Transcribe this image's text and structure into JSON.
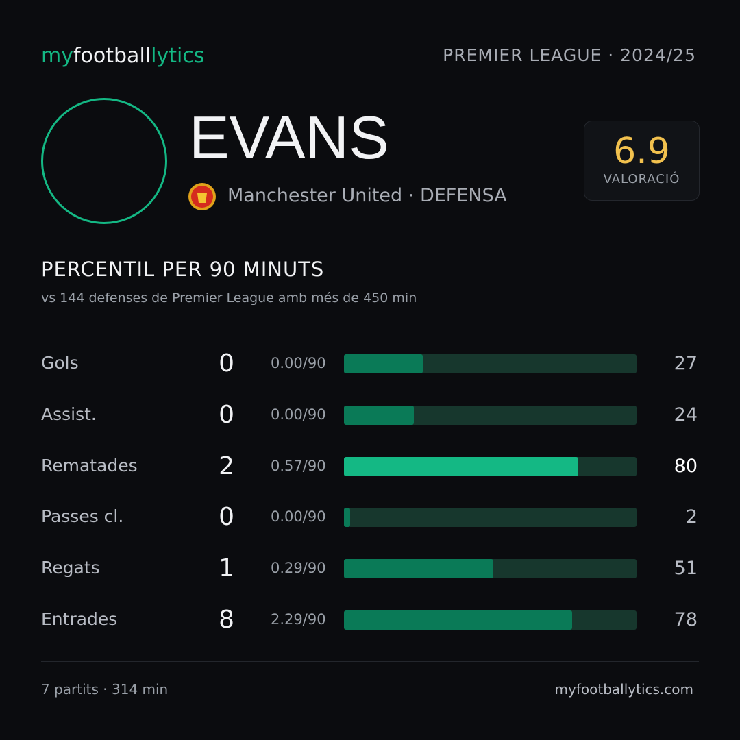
{
  "header": {
    "brand": [
      "my",
      "football",
      "lytics"
    ],
    "competition": "PREMIER LEAGUE · 2024/25"
  },
  "player": {
    "name": "EVANS",
    "team": "Manchester United",
    "position": "· DEFENSA",
    "rating": 6.9,
    "rating_label": "VALORACIÓ"
  },
  "section": {
    "title": "PERCENTIL PER 90 MINUTS",
    "subtitle": "vs 144 defenses de Premier League amb més de 450 min"
  },
  "stats": {
    "xlim": [
      0,
      100
    ],
    "track_color": "#17372d",
    "rows": [
      {
        "label": "Gols",
        "total": "0",
        "per90": "0.00/90",
        "percentile": 27,
        "color": "#0a7a57",
        "text_color": "#b8bcc4"
      },
      {
        "label": "Assist.",
        "total": "0",
        "per90": "0.00/90",
        "percentile": 24,
        "color": "#0a7a57",
        "text_color": "#b8bcc4"
      },
      {
        "label": "Rematades",
        "total": "2",
        "per90": "0.57/90",
        "percentile": 80,
        "color": "#14b884",
        "text_color": "#ffffff"
      },
      {
        "label": "Passes cl.",
        "total": "0",
        "per90": "0.00/90",
        "percentile": 2,
        "color": "#0a7a57",
        "text_color": "#b8bcc4"
      },
      {
        "label": "Regats",
        "total": "1",
        "per90": "0.29/90",
        "percentile": 51,
        "color": "#0a7a57",
        "text_color": "#b8bcc4"
      },
      {
        "label": "Entrades",
        "total": "8",
        "per90": "2.29/90",
        "percentile": 78,
        "color": "#0a7a57",
        "text_color": "#b8bcc4"
      }
    ]
  },
  "footer": {
    "summary": "7 partits · 314 min",
    "site": "myfootballytics.com"
  }
}
